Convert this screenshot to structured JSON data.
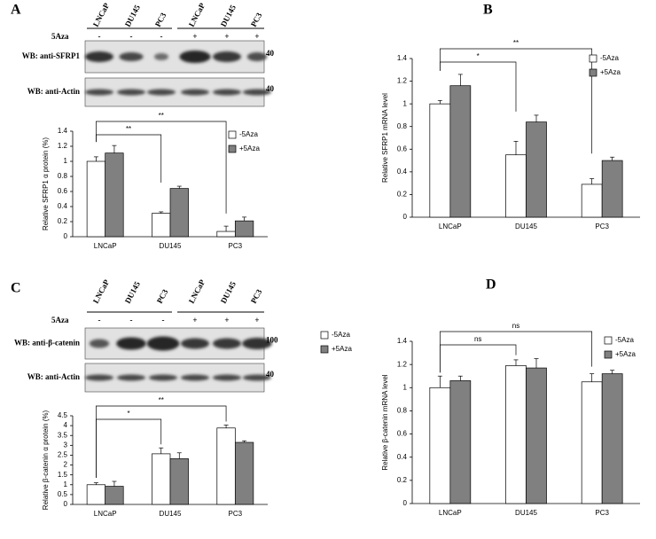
{
  "panel_labels": [
    "A",
    "B",
    "C",
    "D"
  ],
  "blots": [
    {
      "lanes": [
        "LNCaP",
        "DU145",
        "PC3",
        "LNCaP",
        "DU145",
        "PC3"
      ],
      "treatment_label": "5Aza",
      "treatment": [
        "-",
        "-",
        "-",
        "+",
        "+",
        "+"
      ],
      "rows": [
        {
          "label": "WB: anti-SFRP1",
          "marker": "40"
        },
        {
          "label": "WB: anti-Actin",
          "marker": "40"
        }
      ]
    },
    {
      "lanes": [
        "LNCaP",
        "DU145",
        "PC3",
        "LNCaP",
        "DU145",
        "PC3"
      ],
      "treatment_label": "5Aza",
      "treatment": [
        "-",
        "-",
        "-",
        "+",
        "+",
        "+"
      ],
      "rows": [
        {
          "label": "WB: anti-β-catenin",
          "marker": "100"
        },
        {
          "label": "WB: anti-Actin",
          "marker": "40"
        }
      ]
    }
  ],
  "chart_data": [
    {
      "type": "bar",
      "ylabel": "Relative SFRP1 α protein (%)",
      "categories": [
        "LNCaP",
        "DU145",
        "PC3"
      ],
      "series": [
        {
          "name": "-5Aza",
          "color": "#ffffff",
          "values": [
            1.0,
            0.31,
            0.07
          ],
          "errors": [
            0.06,
            0.02,
            0.07
          ]
        },
        {
          "name": "+5Aza",
          "color": "#808080",
          "values": [
            1.11,
            0.64,
            0.21
          ],
          "errors": [
            0.1,
            0.03,
            0.05
          ]
        }
      ],
      "ylim": [
        0,
        1.4
      ],
      "yticks": [
        0,
        0.2,
        0.4,
        0.6,
        0.8,
        1,
        1.2,
        1.4
      ],
      "annotations": [
        {
          "text": "**",
          "from": "LNCaP",
          "to": "DU145"
        },
        {
          "text": "**",
          "from": "LNCaP",
          "to": "PC3"
        }
      ]
    },
    {
      "type": "bar",
      "ylabel": "Relative SFRP1 mRNA level",
      "categories": [
        "LNCaP",
        "DU145",
        "PC3"
      ],
      "series": [
        {
          "name": "-5Aza",
          "color": "#ffffff",
          "values": [
            1.0,
            0.55,
            0.29
          ],
          "errors": [
            0.03,
            0.12,
            0.05
          ]
        },
        {
          "name": "+5Aza",
          "color": "#808080",
          "values": [
            1.16,
            0.84,
            0.5
          ],
          "errors": [
            0.1,
            0.06,
            0.03
          ]
        }
      ],
      "ylim": [
        0,
        1.4
      ],
      "yticks": [
        0,
        0.2,
        0.4,
        0.6,
        0.8,
        1,
        1.2,
        1.4
      ],
      "annotations": [
        {
          "text": "*",
          "from": "LNCaP",
          "to": "DU145"
        },
        {
          "text": "**",
          "from": "LNCaP",
          "to": "PC3"
        }
      ]
    },
    {
      "type": "bar",
      "ylabel": "Relative β-catenin α protein (%)",
      "categories": [
        "LNCaP",
        "DU145",
        "PC3"
      ],
      "series": [
        {
          "name": "-5Aza",
          "color": "#ffffff",
          "values": [
            1.0,
            2.57,
            3.88
          ],
          "errors": [
            0.1,
            0.3,
            0.15
          ]
        },
        {
          "name": "+5Aza",
          "color": "#808080",
          "values": [
            0.92,
            2.32,
            3.15
          ],
          "errors": [
            0.25,
            0.3,
            0.08
          ]
        }
      ],
      "ylim": [
        0,
        4.5
      ],
      "yticks": [
        0,
        0.5,
        1,
        1.5,
        2,
        2.5,
        3,
        3.5,
        4,
        4.5
      ],
      "annotations": [
        {
          "text": "*",
          "from": "LNCaP",
          "to": "DU145"
        },
        {
          "text": "**",
          "from": "LNCaP",
          "to": "PC3"
        }
      ]
    },
    {
      "type": "bar",
      "ylabel": "Relative β-catenin mRNA level",
      "categories": [
        "LNCaP",
        "DU145",
        "PC3"
      ],
      "series": [
        {
          "name": "-5Aza",
          "color": "#ffffff",
          "values": [
            1.0,
            1.19,
            1.05
          ],
          "errors": [
            0.1,
            0.05,
            0.07
          ]
        },
        {
          "name": "+5Aza",
          "color": "#808080",
          "values": [
            1.06,
            1.17,
            1.12
          ],
          "errors": [
            0.04,
            0.08,
            0.03
          ]
        }
      ],
      "ylim": [
        0,
        1.4
      ],
      "yticks": [
        0,
        0.2,
        0.4,
        0.6,
        0.8,
        1,
        1.2,
        1.4
      ],
      "annotations": [
        {
          "text": "ns",
          "from": "LNCaP",
          "to": "DU145"
        },
        {
          "text": "ns",
          "from": "LNCaP",
          "to": "PC3"
        }
      ]
    }
  ]
}
